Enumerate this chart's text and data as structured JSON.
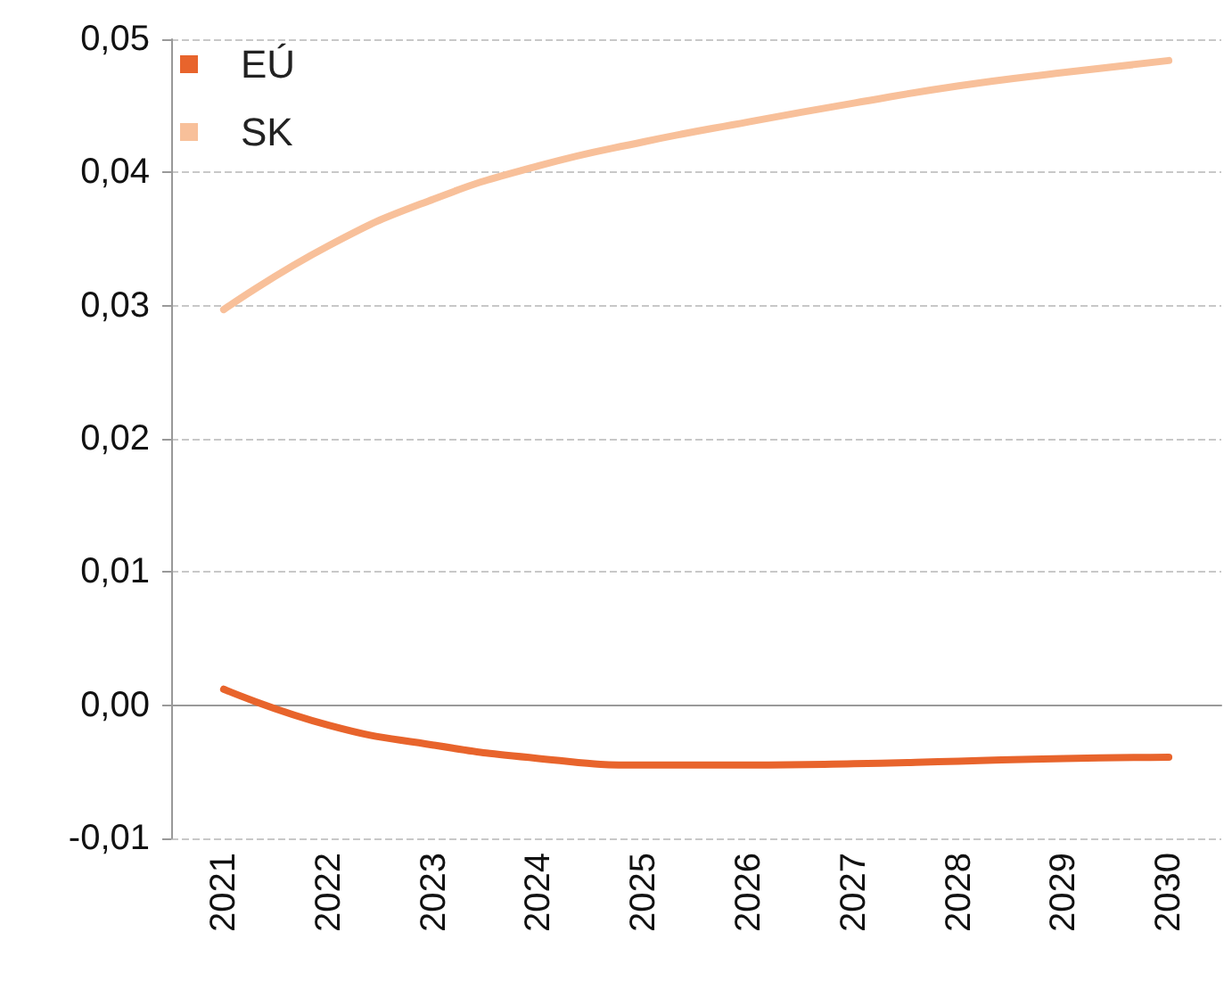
{
  "chart_data": {
    "type": "line",
    "categories": [
      "2021",
      "2022",
      "2023",
      "2024",
      "2025",
      "2026",
      "2027",
      "2028",
      "2029",
      "2030"
    ],
    "series": [
      {
        "name": "EÚ",
        "color": "#e8642c",
        "values": [
          0.0012,
          -0.0015,
          -0.003,
          -0.004,
          -0.0045,
          -0.0045,
          -0.0044,
          -0.0042,
          -0.004,
          -0.0039
        ]
      },
      {
        "name": "SK",
        "color": "#f8c09a",
        "values": [
          0.0297,
          0.0345,
          0.038,
          0.0405,
          0.0423,
          0.0438,
          0.0452,
          0.0465,
          0.0475,
          0.0484
        ]
      }
    ],
    "ylim": [
      -0.01,
      0.05
    ],
    "yticks": [
      {
        "value": -0.01,
        "label": "-0,01"
      },
      {
        "value": 0,
        "label": "0,00"
      },
      {
        "value": 0.01,
        "label": "0,01"
      },
      {
        "value": 0.02,
        "label": "0,02"
      },
      {
        "value": 0.03,
        "label": "0,03"
      },
      {
        "value": 0.04,
        "label": "0,04"
      },
      {
        "value": 0.05,
        "label": "0,05"
      }
    ],
    "grid": "y",
    "legend": "top left",
    "marker": "none",
    "line_style": "solid"
  }
}
